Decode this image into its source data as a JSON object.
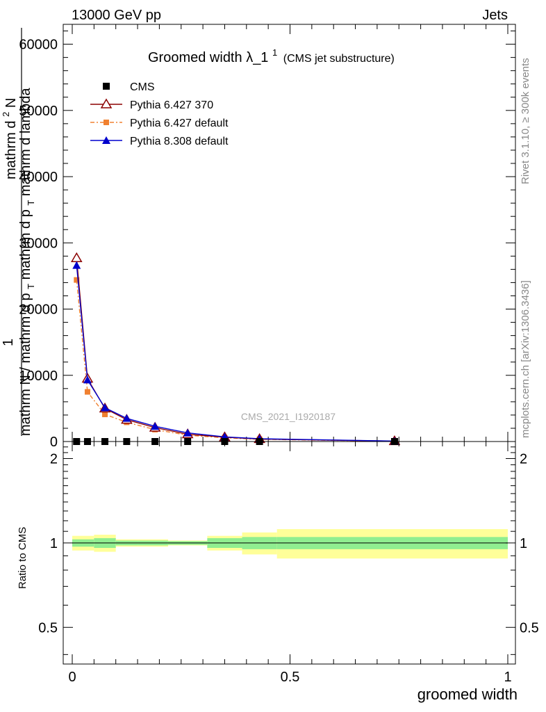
{
  "header": {
    "left": "13000 GeV pp",
    "right": "Jets"
  },
  "side_text": {
    "rivet": "Rivet 3.1.10, ≥ 300k events",
    "mcplots": "mcplots.cern.ch [arXiv:1306.3436]"
  },
  "watermark": "CMS_2021_I1920187",
  "chart_data": [
    {
      "type": "line",
      "title": "Groomed width",
      "title_symbol": "λ_1",
      "title_superscript": "1",
      "subtitle": "(CMS jet substructure)",
      "ylabel": {
        "prefix": "1",
        "numerator": "mathrm d",
        "numerator_sup": "2",
        "numerator_tail": "N",
        "denominator": "mathrm N / mathrm d p",
        "denominator_sub": "T",
        "denominator_tail": "mathrm d p",
        "denominator_sub2": "T",
        "denominator_tail2": "mathrm d lambda"
      },
      "xlim": [
        0,
        1
      ],
      "ylim": [
        0,
        63000
      ],
      "y_ticks": [
        0,
        10000,
        20000,
        30000,
        40000,
        50000,
        60000
      ],
      "y_tick_labels": [
        "0",
        "10000",
        "20000",
        "30000",
        "40000",
        "50000",
        "60000"
      ],
      "legend_position": "top-left",
      "series": [
        {
          "name": "CMS",
          "color": "#000000",
          "marker": "square",
          "x": [
            0.01,
            0.035,
            0.075,
            0.125,
            0.19,
            0.265,
            0.35,
            0.43,
            0.74
          ],
          "y": [
            0,
            0,
            0,
            0,
            0,
            0,
            0,
            0,
            0
          ]
        },
        {
          "name": "Pythia 6.427 370",
          "color": "#8b0000",
          "marker": "open-triangle",
          "x": [
            0.01,
            0.035,
            0.075,
            0.125,
            0.19,
            0.265,
            0.35,
            0.43,
            0.74
          ],
          "y": [
            27700,
            9500,
            5000,
            3300,
            2100,
            1100,
            650,
            380,
            60
          ]
        },
        {
          "name": "Pythia 6.427 default",
          "color": "#f08030",
          "marker": "square-small",
          "x": [
            0.01,
            0.035,
            0.075,
            0.125,
            0.19,
            0.265,
            0.35,
            0.43,
            0.74
          ],
          "y": [
            24400,
            7500,
            4100,
            2900,
            1800,
            950,
            560,
            330,
            50
          ]
        },
        {
          "name": "Pythia 8.308 default",
          "color": "#0000cd",
          "marker": "triangle",
          "x": [
            0.01,
            0.035,
            0.075,
            0.125,
            0.19,
            0.265,
            0.35,
            0.43,
            0.74
          ],
          "y": [
            26600,
            9300,
            5100,
            3500,
            2300,
            1300,
            700,
            420,
            70
          ]
        }
      ]
    },
    {
      "type": "area",
      "ylabel": "Ratio to CMS",
      "xlabel": "groomed width",
      "xlim": [
        0,
        1
      ],
      "ylim": [
        0.37,
        2.3
      ],
      "y_ticks": [
        0.5,
        1,
        2
      ],
      "y_tick_labels": [
        "0.5",
        "1",
        "2"
      ],
      "x_ticks": [
        0,
        0.5,
        1
      ],
      "x_tick_labels": [
        "0",
        "0.5",
        "1"
      ],
      "bands": {
        "bin_edges": [
          0,
          0.05,
          0.1,
          0.15,
          0.22,
          0.31,
          0.39,
          0.47,
          1.0
        ],
        "stat": [
          0.03,
          0.04,
          0.02,
          0.02,
          0.015,
          0.04,
          0.05,
          0.05
        ],
        "total": [
          0.06,
          0.07,
          0.03,
          0.03,
          0.02,
          0.06,
          0.09,
          0.12
        ],
        "stat_color": "#90ee90",
        "total_color": "#ffff99"
      }
    }
  ]
}
